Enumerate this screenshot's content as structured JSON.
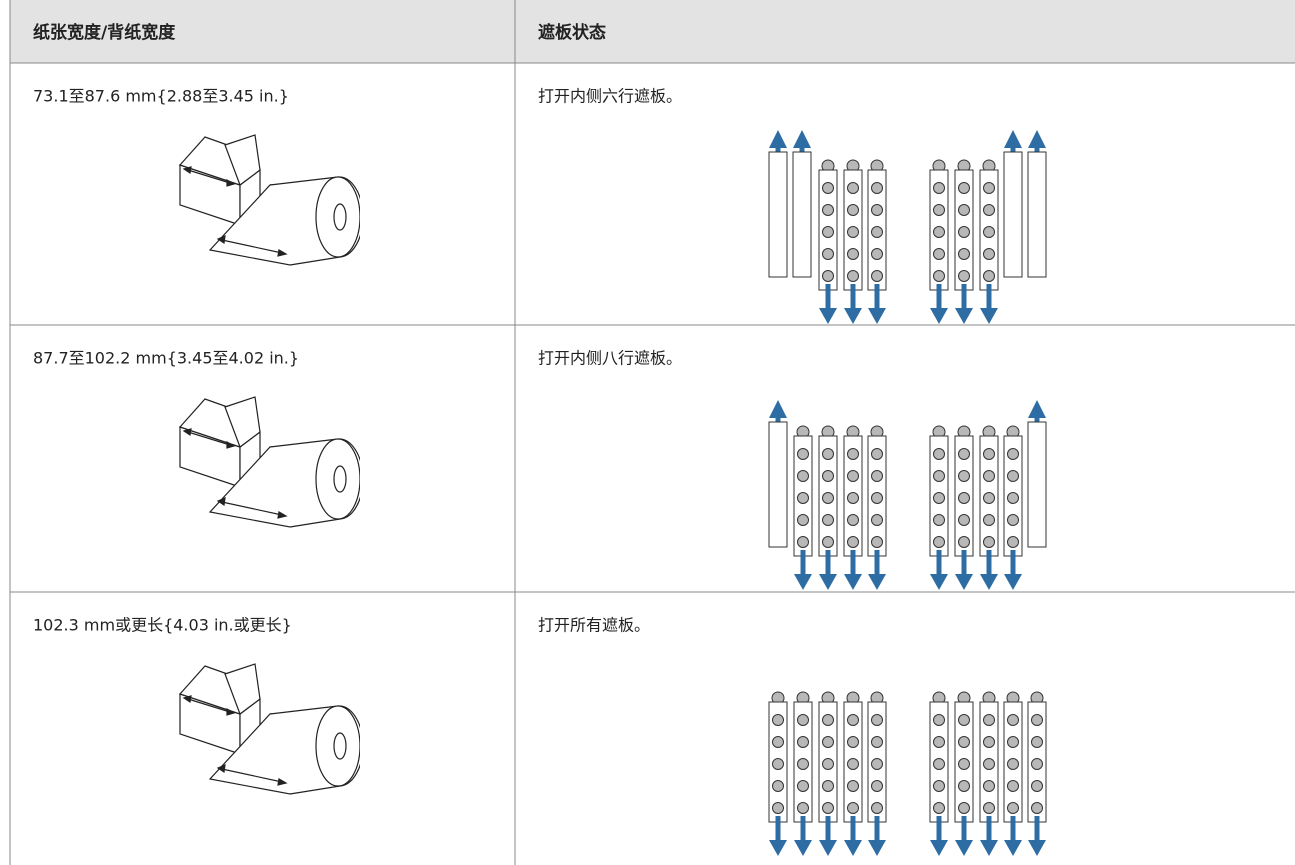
{
  "table": {
    "header": [
      "纸张宽度/背纸宽度",
      "遮板状态"
    ],
    "rows": [
      [
        "73.1至87.6 mm{2.88至3.45 in.}",
        "打开内侧六行遮板。"
      ],
      [
        "87.7至102.2 mm{3.45至4.02 in.}",
        "打开内侧八行遮板。"
      ],
      [
        "102.3 mm或更长{4.03 in.或更长}",
        "打开所有遮板。"
      ]
    ]
  }
}
